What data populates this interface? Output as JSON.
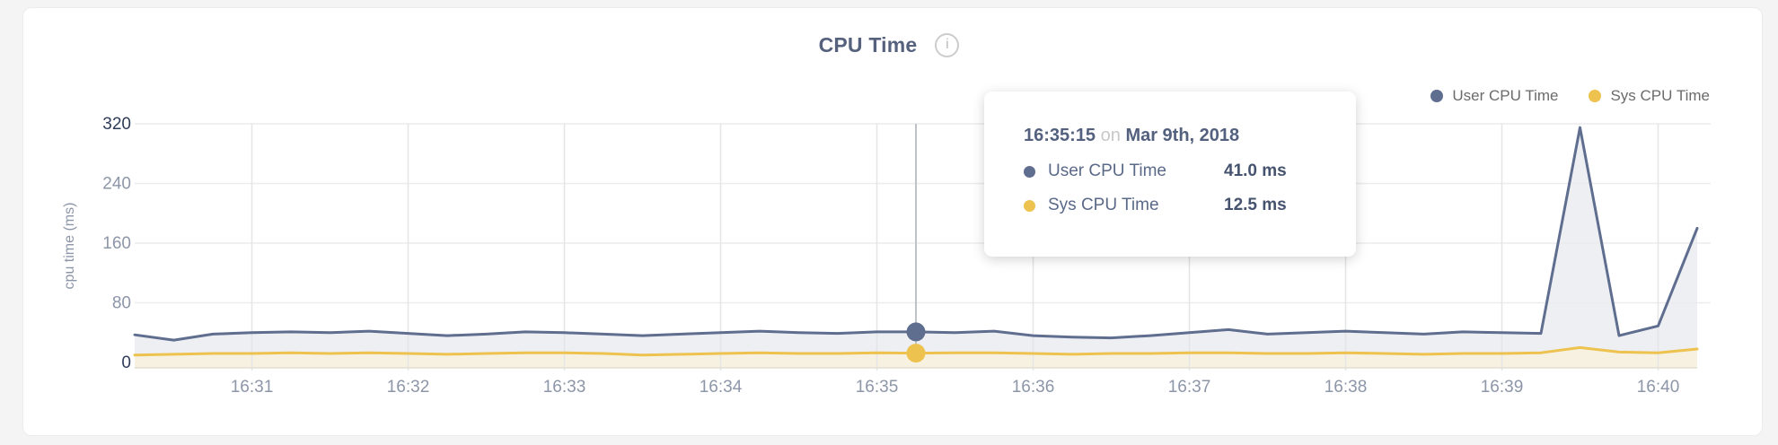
{
  "header": {
    "title": "CPU Time",
    "info_icon": "i"
  },
  "legend": {
    "items": [
      {
        "label": "User CPU Time",
        "color": "#5f6d8f"
      },
      {
        "label": "Sys CPU Time",
        "color": "#edc24f"
      }
    ]
  },
  "tooltip": {
    "time": "16:35:15",
    "connector": "on",
    "date": "Mar 9th, 2018",
    "rows": [
      {
        "label": "User CPU Time",
        "value": "41.0 ms",
        "color": "#5f6d8f"
      },
      {
        "label": "Sys CPU Time",
        "value": "12.5 ms",
        "color": "#edc24f"
      }
    ]
  },
  "chart_data": {
    "type": "area",
    "title": "CPU Time",
    "xlabel": "",
    "ylabel": "cpu time (ms)",
    "ylim": [
      0,
      320
    ],
    "yticks": [
      0,
      80,
      160,
      240,
      320
    ],
    "xticks": [
      "16:31",
      "16:32",
      "16:33",
      "16:34",
      "16:35",
      "16:36",
      "16:37",
      "16:38",
      "16:39",
      "16:40"
    ],
    "x_start": "16:30:15",
    "x_step_seconds": 15,
    "grid": true,
    "legend_position": "top-right",
    "series": [
      {
        "name": "User CPU Time",
        "color": "#5f6d8f",
        "fill": "#edeff3",
        "values": [
          37,
          30,
          38,
          40,
          41,
          40,
          42,
          39,
          36,
          38,
          41,
          40,
          38,
          36,
          38,
          40,
          42,
          40,
          39,
          41,
          41,
          40,
          42,
          36,
          34,
          33,
          36,
          40,
          44,
          38,
          40,
          42,
          40,
          38,
          41,
          40,
          39,
          315,
          36,
          49,
          180
        ]
      },
      {
        "name": "Sys CPU Time",
        "color": "#edc24f",
        "fill": "#f6f1e1",
        "values": [
          10,
          11,
          12,
          12,
          13,
          12,
          13,
          12,
          11,
          12,
          13,
          13,
          12,
          10,
          11,
          12,
          13,
          12,
          12,
          13,
          12.5,
          13,
          13,
          12,
          11,
          12,
          12,
          13,
          13,
          12,
          12,
          13,
          12,
          11,
          12,
          12,
          13,
          20,
          14,
          13,
          18
        ]
      }
    ],
    "marker": {
      "time": "16:35:15",
      "values": {
        "User CPU Time": 41.0,
        "Sys CPU Time": 12.5
      }
    },
    "colors": {
      "grid_h": "#ececee",
      "grid_v": "#e5e5e7",
      "baseline": "#e2ded2",
      "marker_line": "#bfc2c6",
      "tick_dark": "#2f3c59",
      "tick_light": "#8d96a8"
    }
  }
}
